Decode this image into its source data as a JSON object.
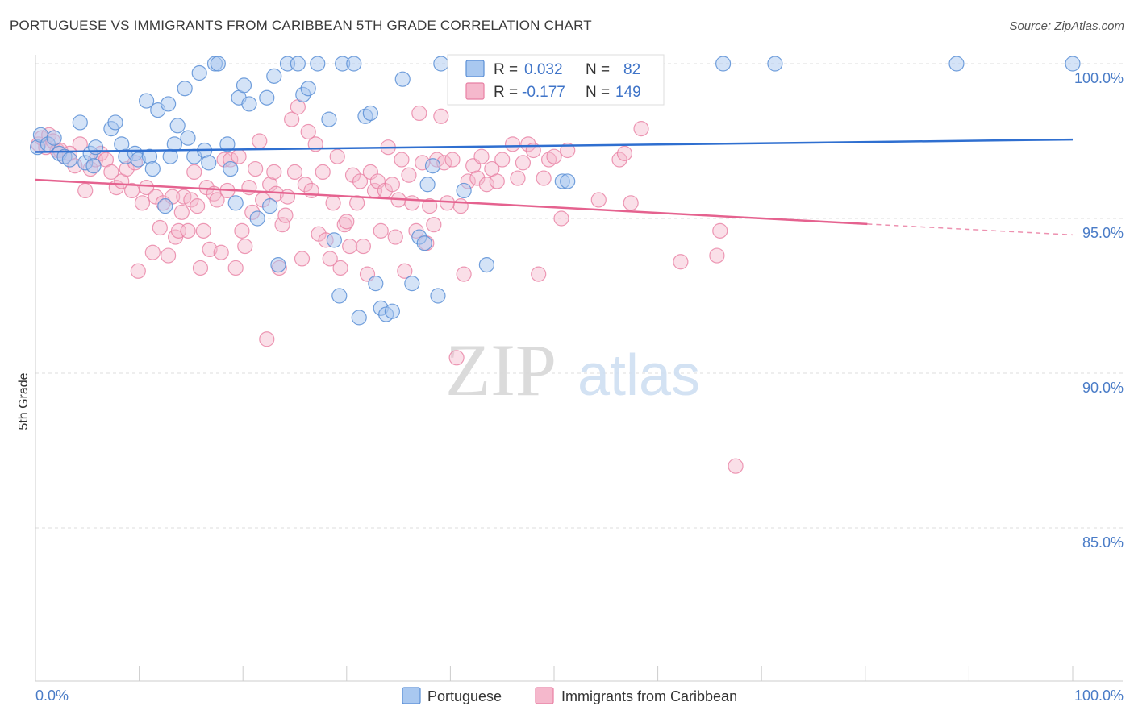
{
  "title": "PORTUGUESE VS IMMIGRANTS FROM CARIBBEAN 5TH GRADE CORRELATION CHART",
  "source": "Source: ZipAtlas.com",
  "watermark": {
    "zip": "ZIP",
    "atlas": "atlas"
  },
  "colors": {
    "blue_fill": "#a9c8f0",
    "blue_stroke": "#5b8fd6",
    "blue_line": "#2f6fd0",
    "pink_fill": "#f5b8cc",
    "pink_stroke": "#e87fa3",
    "pink_line": "#e5628f",
    "tick_text": "#4a7cc7",
    "grid": "#dddddd"
  },
  "legend": {
    "row1": {
      "r_label": "R =",
      "r_value": "0.032",
      "n_label": "N =",
      "n_value": "82"
    },
    "row2": {
      "r_label": "R =",
      "r_value": "-0.177",
      "n_label": "N =",
      "n_value": "149"
    }
  },
  "chart_data": {
    "type": "scatter",
    "title": "PORTUGUESE VS IMMIGRANTS FROM CARIBBEAN 5TH GRADE CORRELATION CHART",
    "xlabel": "",
    "ylabel": "5th Grade",
    "xlim": [
      0,
      100
    ],
    "ylim": [
      80.5,
      100.5
    ],
    "x_tick_labels": [
      "0.0%",
      "100.0%"
    ],
    "y_tick_labels": [
      "100.0%",
      "95.0%",
      "90.0%",
      "85.0%"
    ],
    "y_ticks": [
      100,
      95,
      90,
      85
    ],
    "grid": "dashed horizontal",
    "legend_position": "top-center",
    "series": [
      {
        "name": "Portuguese",
        "color": "#5b8fd6",
        "trend": {
          "x": [
            0,
            100
          ],
          "y": [
            97.15,
            97.55
          ]
        },
        "points": [
          [
            0.2,
            97.3
          ],
          [
            0.5,
            97.7
          ],
          [
            1.2,
            97.4
          ],
          [
            1.8,
            97.6
          ],
          [
            2.3,
            97.1
          ],
          [
            2.8,
            97.0
          ],
          [
            3.3,
            96.9
          ],
          [
            4.3,
            98.1
          ],
          [
            4.8,
            96.8
          ],
          [
            5.3,
            97.1
          ],
          [
            5.6,
            96.7
          ],
          [
            5.8,
            97.3
          ],
          [
            7.3,
            97.9
          ],
          [
            7.7,
            98.1
          ],
          [
            8.3,
            97.4
          ],
          [
            8.7,
            97.0
          ],
          [
            9.6,
            97.1
          ],
          [
            9.9,
            96.9
          ],
          [
            10.7,
            98.8
          ],
          [
            11.0,
            97.0
          ],
          [
            11.3,
            96.6
          ],
          [
            11.8,
            98.5
          ],
          [
            12.5,
            95.4
          ],
          [
            12.8,
            98.7
          ],
          [
            13.0,
            97.0
          ],
          [
            13.4,
            97.4
          ],
          [
            13.7,
            98.0
          ],
          [
            14.4,
            99.2
          ],
          [
            14.7,
            97.6
          ],
          [
            15.3,
            97.0
          ],
          [
            15.8,
            99.7
          ],
          [
            16.3,
            97.2
          ],
          [
            16.7,
            96.8
          ],
          [
            17.3,
            100.0
          ],
          [
            17.6,
            100.0
          ],
          [
            18.5,
            97.4
          ],
          [
            18.8,
            96.6
          ],
          [
            19.3,
            95.5
          ],
          [
            19.6,
            98.9
          ],
          [
            20.1,
            99.3
          ],
          [
            20.6,
            98.7
          ],
          [
            21.4,
            95.0
          ],
          [
            22.3,
            98.9
          ],
          [
            22.6,
            95.4
          ],
          [
            23.0,
            99.6
          ],
          [
            23.4,
            93.5
          ],
          [
            24.3,
            100.0
          ],
          [
            25.3,
            100.0
          ],
          [
            25.8,
            99.0
          ],
          [
            26.3,
            99.2
          ],
          [
            27.2,
            100.0
          ],
          [
            28.3,
            98.2
          ],
          [
            28.8,
            94.3
          ],
          [
            29.3,
            92.5
          ],
          [
            29.6,
            100.0
          ],
          [
            30.7,
            100.0
          ],
          [
            31.2,
            91.8
          ],
          [
            31.8,
            98.3
          ],
          [
            32.3,
            98.4
          ],
          [
            32.8,
            92.9
          ],
          [
            33.3,
            92.1
          ],
          [
            33.8,
            91.9
          ],
          [
            34.4,
            92.0
          ],
          [
            35.4,
            99.5
          ],
          [
            36.3,
            92.9
          ],
          [
            37.0,
            94.4
          ],
          [
            37.5,
            94.2
          ],
          [
            37.8,
            96.1
          ],
          [
            38.3,
            96.7
          ],
          [
            38.8,
            92.5
          ],
          [
            39.1,
            100.0
          ],
          [
            41.3,
            95.9
          ],
          [
            43.5,
            93.5
          ],
          [
            45.3,
            100.0
          ],
          [
            50.8,
            96.2
          ],
          [
            51.3,
            96.2
          ],
          [
            66.3,
            100.0
          ],
          [
            71.3,
            100.0
          ],
          [
            88.8,
            100.0
          ],
          [
            100.0,
            100.0
          ]
        ]
      },
      {
        "name": "Immigrants from Caribbean",
        "color": "#e87fa3",
        "trend": {
          "x": [
            0,
            80.2
          ],
          "y": [
            96.25,
            94.82
          ]
        },
        "trend_dashed": {
          "x": [
            80.2,
            100
          ],
          "y": [
            94.82,
            94.47
          ]
        },
        "points": [
          [
            0.3,
            97.4
          ],
          [
            0.6,
            97.6
          ],
          [
            1.0,
            97.3
          ],
          [
            1.3,
            97.7
          ],
          [
            1.7,
            97.5
          ],
          [
            2.1,
            97.2
          ],
          [
            2.4,
            97.2
          ],
          [
            2.8,
            97.0
          ],
          [
            3.3,
            97.1
          ],
          [
            3.8,
            96.7
          ],
          [
            4.3,
            97.4
          ],
          [
            4.8,
            95.9
          ],
          [
            5.3,
            96.6
          ],
          [
            5.8,
            96.9
          ],
          [
            6.3,
            97.1
          ],
          [
            6.8,
            96.9
          ],
          [
            7.3,
            96.5
          ],
          [
            7.8,
            96.0
          ],
          [
            8.3,
            96.2
          ],
          [
            8.8,
            96.6
          ],
          [
            9.3,
            95.9
          ],
          [
            9.6,
            96.8
          ],
          [
            9.9,
            93.3
          ],
          [
            10.3,
            95.5
          ],
          [
            10.7,
            96.0
          ],
          [
            11.3,
            93.9
          ],
          [
            11.6,
            95.7
          ],
          [
            12.0,
            94.7
          ],
          [
            12.3,
            95.5
          ],
          [
            12.8,
            93.8
          ],
          [
            13.2,
            95.7
          ],
          [
            13.5,
            94.4
          ],
          [
            13.8,
            94.6
          ],
          [
            14.1,
            95.2
          ],
          [
            14.3,
            95.7
          ],
          [
            14.7,
            94.6
          ],
          [
            15.0,
            95.6
          ],
          [
            15.3,
            96.5
          ],
          [
            15.6,
            95.4
          ],
          [
            15.9,
            93.4
          ],
          [
            16.2,
            94.6
          ],
          [
            16.5,
            96.0
          ],
          [
            16.8,
            94.0
          ],
          [
            17.2,
            95.8
          ],
          [
            17.5,
            95.6
          ],
          [
            17.9,
            93.9
          ],
          [
            18.2,
            96.9
          ],
          [
            18.5,
            95.9
          ],
          [
            18.8,
            96.9
          ],
          [
            19.3,
            93.4
          ],
          [
            19.6,
            97.0
          ],
          [
            19.9,
            94.6
          ],
          [
            20.2,
            94.1
          ],
          [
            20.6,
            96.0
          ],
          [
            20.9,
            95.2
          ],
          [
            21.2,
            96.6
          ],
          [
            21.6,
            97.5
          ],
          [
            21.9,
            95.6
          ],
          [
            22.3,
            91.1
          ],
          [
            22.6,
            96.1
          ],
          [
            23.0,
            96.5
          ],
          [
            23.2,
            95.8
          ],
          [
            23.5,
            93.4
          ],
          [
            23.8,
            94.8
          ],
          [
            24.1,
            95.1
          ],
          [
            24.3,
            95.7
          ],
          [
            24.7,
            98.2
          ],
          [
            25.0,
            96.5
          ],
          [
            25.3,
            98.6
          ],
          [
            25.7,
            93.7
          ],
          [
            26.0,
            96.1
          ],
          [
            26.3,
            97.8
          ],
          [
            26.6,
            95.9
          ],
          [
            27.0,
            97.4
          ],
          [
            27.3,
            94.5
          ],
          [
            27.7,
            96.5
          ],
          [
            28.0,
            94.3
          ],
          [
            28.4,
            93.7
          ],
          [
            28.7,
            95.5
          ],
          [
            29.1,
            97.0
          ],
          [
            29.4,
            93.4
          ],
          [
            29.8,
            94.8
          ],
          [
            30.0,
            94.9
          ],
          [
            30.3,
            94.1
          ],
          [
            30.6,
            96.4
          ],
          [
            31.0,
            95.5
          ],
          [
            31.3,
            96.2
          ],
          [
            31.6,
            94.1
          ],
          [
            32.0,
            93.2
          ],
          [
            32.3,
            96.5
          ],
          [
            32.7,
            95.9
          ],
          [
            33.0,
            96.2
          ],
          [
            33.3,
            94.6
          ],
          [
            33.7,
            95.9
          ],
          [
            34.0,
            97.3
          ],
          [
            34.4,
            96.1
          ],
          [
            34.7,
            94.4
          ],
          [
            35.0,
            95.6
          ],
          [
            35.3,
            96.9
          ],
          [
            35.6,
            93.3
          ],
          [
            36.0,
            96.4
          ],
          [
            36.3,
            95.5
          ],
          [
            36.7,
            94.6
          ],
          [
            37.0,
            98.4
          ],
          [
            37.3,
            96.8
          ],
          [
            37.7,
            94.2
          ],
          [
            38.0,
            95.4
          ],
          [
            38.4,
            94.8
          ],
          [
            38.7,
            96.9
          ],
          [
            39.1,
            98.3
          ],
          [
            39.4,
            96.8
          ],
          [
            39.7,
            95.5
          ],
          [
            40.2,
            96.9
          ],
          [
            40.6,
            90.5
          ],
          [
            41.0,
            95.4
          ],
          [
            41.3,
            93.2
          ],
          [
            41.7,
            96.2
          ],
          [
            42.2,
            96.7
          ],
          [
            42.6,
            96.3
          ],
          [
            43.0,
            97.0
          ],
          [
            43.5,
            96.1
          ],
          [
            44.0,
            96.6
          ],
          [
            44.5,
            96.2
          ],
          [
            45.0,
            96.9
          ],
          [
            45.3,
            100.0
          ],
          [
            46.0,
            97.4
          ],
          [
            46.5,
            96.3
          ],
          [
            47.0,
            96.8
          ],
          [
            47.5,
            97.4
          ],
          [
            48.0,
            97.2
          ],
          [
            48.5,
            93.2
          ],
          [
            49.0,
            96.3
          ],
          [
            49.5,
            96.9
          ],
          [
            50.0,
            97.0
          ],
          [
            50.7,
            95.0
          ],
          [
            51.3,
            97.2
          ],
          [
            54.3,
            95.6
          ],
          [
            56.3,
            96.9
          ],
          [
            56.8,
            97.1
          ],
          [
            57.4,
            95.5
          ],
          [
            58.4,
            97.9
          ],
          [
            62.2,
            93.6
          ],
          [
            65.7,
            93.8
          ],
          [
            66.0,
            94.6
          ],
          [
            67.5,
            87.0
          ]
        ]
      }
    ]
  },
  "x_legend": [
    {
      "name": "Portuguese"
    },
    {
      "name": "Immigrants from Caribbean"
    }
  ]
}
